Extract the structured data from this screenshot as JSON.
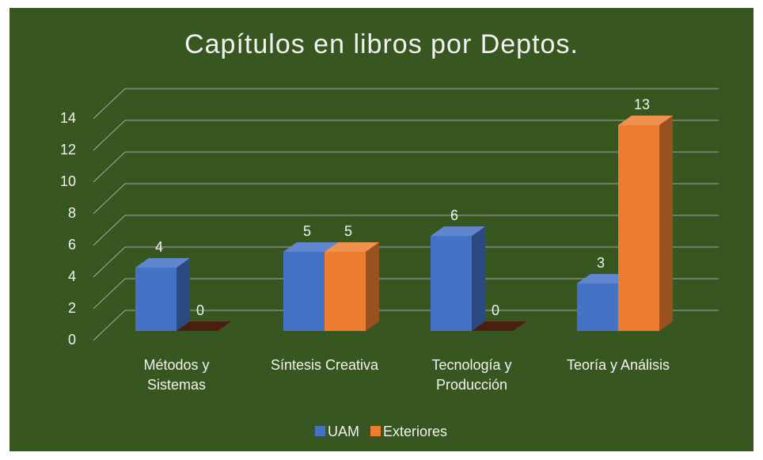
{
  "chart_data": {
    "type": "bar3d",
    "title": "Capítulos en libros por Deptos.",
    "categories": [
      "Métodos y Sistemas",
      "Síntesis Creativa",
      "Tecnología y Producción",
      "Teoría y Análisis"
    ],
    "series": [
      {
        "name": "UAM",
        "color": "#4472c4",
        "values": [
          4,
          5,
          6,
          3
        ]
      },
      {
        "name": "Exteriores",
        "color": "#ed7d31",
        "values": [
          0,
          5,
          0,
          13
        ]
      }
    ],
    "ylim": [
      0,
      14
    ],
    "yticks": [
      0,
      2,
      4,
      6,
      8,
      10,
      12,
      14
    ],
    "grid": true,
    "legend": "bottom"
  }
}
